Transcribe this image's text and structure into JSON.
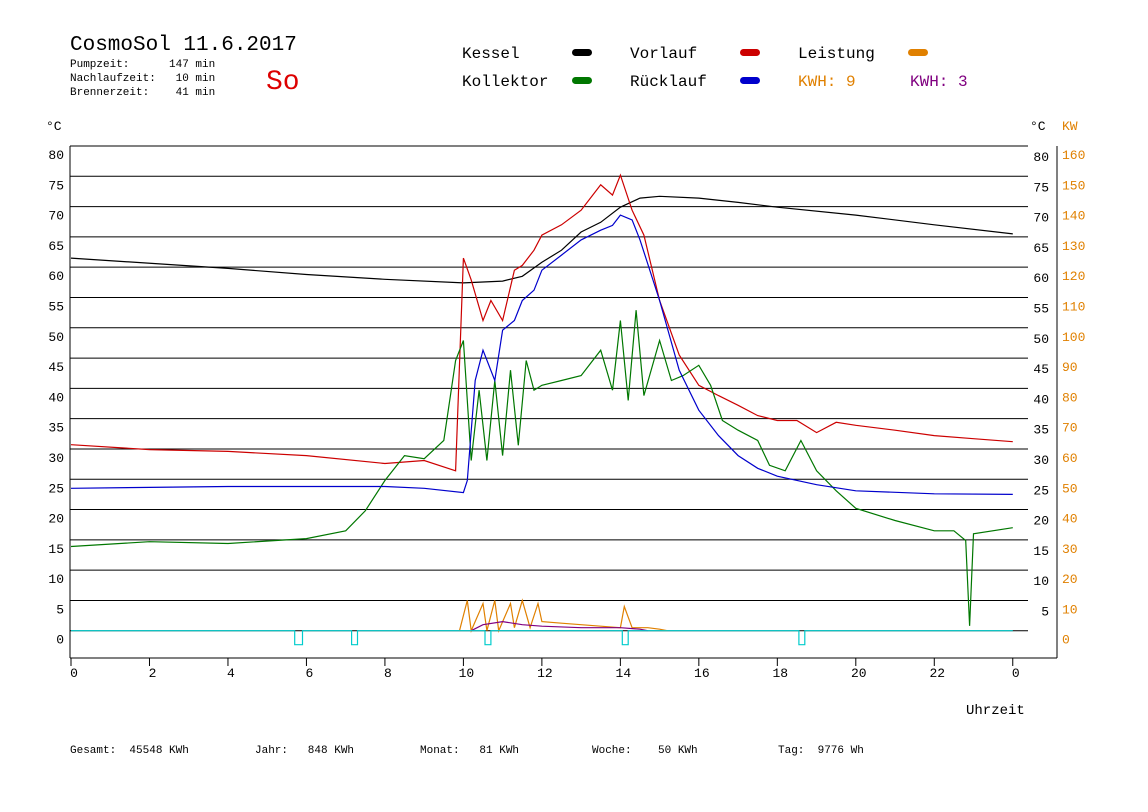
{
  "chart_data": {
    "type": "line",
    "title": "CosmoSol 11.6.2017",
    "info": [
      "Pumpzeit:      147 min",
      "Nachlaufzeit:   10 min",
      "Brennerzeit:    41 min"
    ],
    "day": "So",
    "y_unit_left": "°C",
    "y_unit_right": "°C",
    "y2_unit": "KW",
    "xlabel": "Uhrzeit",
    "kwh_labels": [
      "KWH: 9",
      "KWH: 3"
    ],
    "footer": [
      "Gesamt:  45548 KWh",
      "Jahr:   848 KWh",
      "Monat:   81 KWh",
      "Woche:    50 KWh",
      "Tag:  9776 Wh"
    ],
    "xlim": [
      0,
      25
    ],
    "xticks": [
      0,
      2,
      4,
      6,
      8,
      10,
      12,
      14,
      16,
      18,
      20,
      22,
      {
        "value": 24,
        "label": "0"
      }
    ],
    "ylim": [
      -4.5,
      80
    ],
    "yticks": [
      0,
      5,
      10,
      15,
      20,
      25,
      30,
      35,
      40,
      45,
      50,
      55,
      60,
      65,
      70,
      75,
      80
    ],
    "yticks_right": [
      5,
      10,
      15,
      20,
      25,
      30,
      35,
      40,
      45,
      50,
      55,
      60,
      65,
      70,
      75,
      80
    ],
    "y2lim": [
      -9,
      160
    ],
    "y2ticks": [
      0,
      10,
      20,
      30,
      40,
      50,
      60,
      70,
      80,
      90,
      100,
      110,
      120,
      130,
      140,
      150,
      160
    ],
    "grid": true,
    "series": [
      {
        "name": "Kessel",
        "color": "#000000",
        "x": [
          0,
          4,
          6,
          8,
          10,
          11,
          11.5,
          12,
          12.5,
          13,
          13.5,
          14,
          14.5,
          15,
          16,
          17,
          18,
          20,
          22,
          24
        ],
        "values": [
          61.5,
          59.8,
          58.8,
          58,
          57.4,
          57.7,
          58.5,
          60.8,
          62.8,
          65.8,
          67.4,
          69.9,
          71.4,
          71.7,
          71.4,
          70.7,
          69.9,
          68.6,
          67,
          65.5
        ]
      },
      {
        "name": "Vorlauf",
        "color": "#cc0000",
        "x": [
          0,
          2,
          4,
          6,
          8,
          9,
          9.8,
          10,
          10.2,
          10.5,
          10.7,
          11,
          11.3,
          11.5,
          11.8,
          12,
          12.5,
          13,
          13.5,
          13.8,
          14,
          14.3,
          14.6,
          15,
          15.5,
          16,
          16.5,
          17,
          17.5,
          18,
          18.5,
          19,
          19.5,
          20,
          21,
          22,
          23,
          24
        ],
        "values": [
          30.7,
          29.9,
          29.6,
          28.9,
          27.6,
          28.1,
          26.4,
          61.5,
          57.9,
          51.2,
          54.5,
          51.2,
          59.5,
          60.3,
          62.8,
          65.3,
          67,
          69.4,
          73.6,
          71.9,
          75.2,
          69.4,
          65.3,
          54.5,
          45.5,
          40.5,
          38.8,
          37.2,
          35.5,
          34.7,
          34.7,
          32.7,
          34.4,
          33.9,
          33.1,
          32.2,
          31.7,
          31.2
        ]
      },
      {
        "name": "Leistung",
        "color": "#e08000",
        "axis": "y2",
        "x": [
          9.9,
          10.1,
          10.2,
          10.5,
          10.6,
          10.8,
          10.9,
          11.2,
          11.3,
          11.5,
          11.7,
          11.9,
          12,
          12.5,
          13,
          13.5,
          14,
          14.1,
          14.3,
          14.7,
          15,
          15.2
        ],
        "values": [
          0,
          10,
          0,
          9,
          0,
          10,
          0,
          9,
          1,
          10,
          1,
          9,
          3,
          2.5,
          2,
          1.5,
          1,
          8,
          1,
          1,
          0.5,
          0
        ]
      },
      {
        "name": "Kollektor",
        "color": "#007700",
        "x": [
          0,
          2,
          4,
          6,
          7,
          7.5,
          8,
          8.5,
          9,
          9.5,
          9.8,
          10,
          10.2,
          10.4,
          10.6,
          10.8,
          11,
          11.2,
          11.4,
          11.6,
          11.8,
          12,
          12.5,
          13,
          13.5,
          13.8,
          14,
          14.2,
          14.4,
          14.6,
          15,
          15.3,
          15.6,
          16,
          16.3,
          16.6,
          17,
          17.5,
          17.8,
          18.2,
          18.6,
          19,
          19.5,
          20,
          21,
          22,
          22.5,
          22.8,
          22.9,
          23,
          24
        ],
        "values": [
          13.9,
          14.7,
          14.4,
          15.2,
          16.5,
          19.8,
          24.8,
          28.9,
          28.4,
          31.4,
          44.6,
          47.9,
          28.1,
          39.7,
          28.1,
          41.3,
          28.9,
          43,
          30.6,
          44.6,
          39.7,
          40.5,
          41.3,
          42.1,
          46.3,
          39.7,
          51.2,
          38,
          52.9,
          38.8,
          47.9,
          41.3,
          42.1,
          43.8,
          40.5,
          34.7,
          33.1,
          31.4,
          27.3,
          26.4,
          31.4,
          26.4,
          23.1,
          20.2,
          18.2,
          16.5,
          16.5,
          14.9,
          0.8,
          16,
          17
        ]
      },
      {
        "name": "Rücklauf",
        "color": "#0000cc",
        "x": [
          0,
          4,
          8,
          9,
          10,
          10.1,
          10.3,
          10.5,
          10.8,
          11,
          11.3,
          11.5,
          11.8,
          12,
          12.5,
          13,
          13.5,
          13.8,
          14,
          14.3,
          14.5,
          15,
          15.5,
          16,
          16.5,
          17,
          17.5,
          18,
          19,
          20,
          22,
          24
        ],
        "values": [
          23.5,
          23.8,
          23.8,
          23.5,
          22.8,
          24.8,
          41.3,
          46.3,
          41.3,
          49.6,
          51.2,
          54.5,
          56.2,
          59.5,
          62,
          64.5,
          66.1,
          66.9,
          68.6,
          67.8,
          64.5,
          54.5,
          43,
          36.4,
          32.2,
          28.9,
          26.8,
          25.5,
          24.1,
          23.1,
          22.6,
          22.5
        ]
      },
      {
        "color": "#800080",
        "axis": "y2",
        "x": [
          10.2,
          10.5,
          11,
          11.5,
          12,
          13,
          14,
          14.5,
          14.7
        ],
        "values": [
          0,
          2,
          3,
          2,
          1.5,
          1,
          1,
          0.5,
          0
        ]
      },
      {
        "color": "#00cccc",
        "x": [
          0,
          5.7,
          5.7,
          5.9,
          5.9,
          7.15,
          7.15,
          7.3,
          7.3,
          10.55,
          10.55,
          10.7,
          10.7,
          14.05,
          14.05,
          14.2,
          14.2,
          18.55,
          18.55,
          18.7,
          18.7,
          24
        ],
        "values": [
          0,
          0,
          -2.3,
          -2.3,
          0,
          0,
          -2.3,
          -2.3,
          0,
          0,
          -2.3,
          -2.3,
          0,
          0,
          -2.3,
          -2.3,
          0,
          0,
          -2.3,
          -2.3,
          0,
          0
        ]
      }
    ]
  }
}
